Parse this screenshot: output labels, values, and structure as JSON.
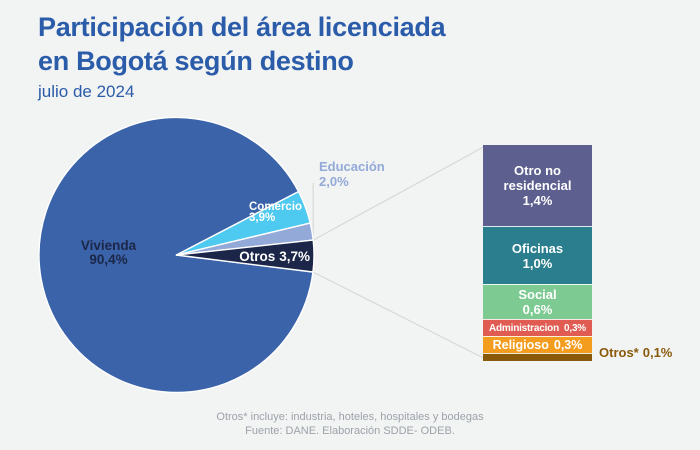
{
  "header": {
    "title_line1": "Participación del área licenciada",
    "title_line2": "en Bogotá según destino",
    "subtitle": "julio de 2024"
  },
  "colors": {
    "background": "#F2F3F3",
    "title_blue": "#2B5CA9",
    "leader_line": "#D7D8D9",
    "footer_gray": "#9CA3A9",
    "pie_label_dark": "#1B2648"
  },
  "chart_data": {
    "type": "pie",
    "title": "Participación del área licenciada en Bogotá según destino",
    "subtitle": "julio de 2024",
    "unit": "%",
    "slices": [
      {
        "label": "Vivienda",
        "value": 90.4,
        "display": "90,4%",
        "color": "#3B63A9"
      },
      {
        "label": "Comercio",
        "value": 3.9,
        "display": "3,9%",
        "color": "#4EC9F0"
      },
      {
        "label": "Educación",
        "value": 2.0,
        "display": "2,0%",
        "color": "#93A9D8"
      },
      {
        "label": "Otros",
        "value": 3.7,
        "display": "3,7%",
        "color": "#1B2648"
      }
    ],
    "otros_breakdown": {
      "type": "stacked-bar",
      "total_display": "3,7%",
      "segments": [
        {
          "label": "Otro no residencial",
          "value": 1.4,
          "display": "1,4%",
          "color": "#5D5F8E"
        },
        {
          "label": "Oficinas",
          "value": 1.0,
          "display": "1,0%",
          "color": "#2A7E8D"
        },
        {
          "label": "Social",
          "value": 0.6,
          "display": "0,6%",
          "color": "#7ECA93"
        },
        {
          "label": "Administracion",
          "value": 0.3,
          "display": "0,3%",
          "color": "#E05B51"
        },
        {
          "label": "Religioso",
          "value": 0.3,
          "display": "0,3%",
          "color": "#F49C1E"
        },
        {
          "label": "Otros*",
          "value": 0.1,
          "display": "0,1%",
          "color": "#8A5A0B"
        }
      ]
    }
  },
  "footer": {
    "note": "Otros* incluye: industria, hoteles, hospitales y bodegas",
    "source": "Fuente: DANE. Elaboración SDDE- ODEB."
  }
}
